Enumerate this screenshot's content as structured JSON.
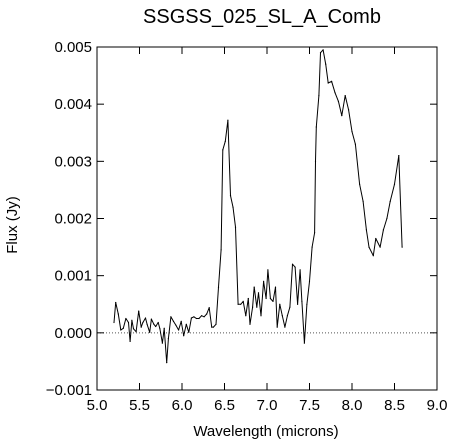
{
  "chart_data": {
    "type": "line",
    "title": "SSGSS_025_SL_A_Comb",
    "xlabel": "Wavelength (microns)",
    "ylabel": "Flux (Jy)",
    "xlim": [
      5.0,
      9.0
    ],
    "ylim": [
      -0.001,
      0.005
    ],
    "xticks": [
      5.0,
      5.5,
      6.0,
      6.5,
      7.0,
      7.5,
      8.0,
      8.5,
      9.0
    ],
    "xtick_labels": [
      "5.0",
      "5.5",
      "6.0",
      "6.5",
      "7.0",
      "7.5",
      "8.0",
      "8.5",
      "9.0"
    ],
    "yticks": [
      -0.001,
      0.0,
      0.001,
      0.002,
      0.003,
      0.004,
      0.005
    ],
    "ytick_labels": [
      "−0.001",
      "0.000",
      "0.001",
      "0.002",
      "0.003",
      "0.004",
      "0.005"
    ],
    "reference_line": {
      "y": 0.0,
      "style": "dotted"
    },
    "grid": false,
    "colors": {
      "line": "#000000",
      "reference_line": "#555555",
      "axes": "#000000"
    },
    "series": [
      {
        "x": [
          5.2,
          5.22,
          5.25,
          5.28,
          5.31,
          5.34,
          5.37,
          5.39,
          5.41,
          5.43,
          5.46,
          5.49,
          5.52,
          5.54,
          5.57,
          5.59,
          5.62,
          5.64,
          5.67,
          5.69,
          5.72,
          5.74,
          5.77,
          5.79,
          5.82,
          5.84,
          5.87,
          5.9,
          5.93,
          5.96,
          5.99,
          6.02,
          6.05,
          6.08,
          6.11,
          6.14,
          6.17,
          6.2,
          6.23,
          6.26,
          6.29,
          6.32,
          6.35,
          6.37,
          6.4,
          6.43,
          6.46,
          6.48,
          6.51,
          6.54,
          6.57,
          6.6,
          6.63,
          6.66,
          6.69,
          6.72,
          6.75,
          6.78,
          6.8,
          6.83,
          6.85,
          6.88,
          6.9,
          6.93,
          6.96,
          6.99,
          7.01,
          7.04,
          7.07,
          7.1,
          7.12,
          7.15,
          7.18,
          7.21,
          7.24,
          7.27,
          7.3,
          7.33,
          7.36,
          7.39,
          7.41,
          7.44,
          7.47,
          7.5,
          7.53,
          7.56,
          7.57,
          7.58,
          7.61,
          7.63,
          7.66,
          7.69,
          7.72,
          7.76,
          7.8,
          7.84,
          7.88,
          7.92,
          7.96,
          8.0,
          8.04,
          8.09,
          8.13,
          8.17,
          8.2,
          8.25,
          8.28,
          8.33,
          8.37,
          8.41,
          8.45,
          8.5,
          8.55,
          8.59
        ],
        "y": [
          0.00018,
          0.00053,
          0.00033,
          5e-05,
          8e-05,
          0.00025,
          0.00018,
          -0.00015,
          0.00022,
          7e-05,
          2e-05,
          0.00038,
          0.0001,
          0.00018,
          0.00026,
          0.00015,
          1e-05,
          0.00024,
          0.00015,
          0.00011,
          0.00018,
          7e-05,
          -0.00018,
          8e-05,
          -0.00052,
          -0.0001,
          0.00028,
          0.0002,
          0.00013,
          5e-05,
          0.0002,
          -5e-05,
          0.00015,
          1e-05,
          0.00026,
          0.00028,
          0.00025,
          0.00025,
          0.0003,
          0.00028,
          0.00033,
          0.00044,
          0.0001,
          0.0001,
          0.00015,
          0.0008,
          0.00145,
          0.0032,
          0.00335,
          0.00372,
          0.0024,
          0.0022,
          0.00185,
          0.0005,
          0.0005,
          0.00055,
          0.0003,
          0.0006,
          0.00015,
          0.00045,
          0.0008,
          0.00045,
          0.0007,
          0.0003,
          0.0009,
          0.0006,
          0.0011,
          0.0006,
          0.00055,
          0.0008,
          0.0001,
          0.0005,
          0.0003,
          0.0001,
          0.0003,
          0.00045,
          0.0012,
          0.00115,
          0.0005,
          0.0011,
          0.00055,
          -0.00018,
          0.0005,
          0.0009,
          0.0015,
          0.00175,
          0.003,
          0.0036,
          0.00415,
          0.0049,
          0.00495,
          0.0047,
          0.00437,
          0.0044,
          0.0042,
          0.00405,
          0.0038,
          0.00415,
          0.0039,
          0.00352,
          0.0033,
          0.0026,
          0.0023,
          0.0018,
          0.0015,
          0.00135,
          0.00165,
          0.0015,
          0.0018,
          0.002,
          0.0023,
          0.0026,
          0.0031,
          0.0015
        ]
      }
    ]
  }
}
